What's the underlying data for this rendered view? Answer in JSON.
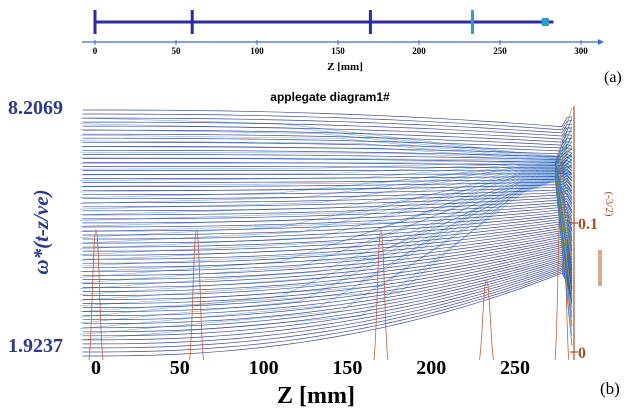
{
  "panel_a": {
    "label": "(a)",
    "xlabel": "Z [mm]",
    "ticks": [
      0,
      50,
      100,
      150,
      200,
      250,
      300
    ],
    "xlim": [
      0,
      310
    ],
    "beam_line": [
      0,
      283
    ],
    "markers": [
      0,
      60,
      170,
      233,
      278
    ],
    "colors": {
      "axis": "#3d6bd4",
      "beam": "#2b2ba8",
      "marker_highlight": "#2aa0c0"
    }
  },
  "panel_b": {
    "label": "(b)",
    "xlabel": "Z [mm]",
    "ylabel": "ω*(t-z/ve)",
    "ylabel_right": "(-3/2)",
    "right_ticks": [
      {
        "value": 0,
        "label": "0"
      },
      {
        "value": 0.1,
        "label": "0.1"
      }
    ],
    "colors": {
      "primary_lines": "#1b2a8a",
      "fan_lines": "#3d8bd4",
      "field_lines": "#c06040",
      "right_axis": "#a0522d",
      "ylabel": "#2b3a8a"
    }
  },
  "chart_data": [
    {
      "type": "line",
      "xlabel": "Z [mm]",
      "xticks": [
        0,
        50,
        100,
        150,
        200,
        250,
        300
      ],
      "xlim": [
        0,
        310
      ],
      "series": []
    },
    {
      "type": "line",
      "title": "applegate diagram1#",
      "xlabel": "Z [mm]",
      "ylabel": "ω*(t-z/ve)",
      "ylabel_right": "(-3/2)",
      "xticks": [
        0,
        50,
        100,
        150,
        200,
        250
      ],
      "xlim": [
        -8,
        292
      ],
      "ylim": [
        1.9237,
        8.2069
      ],
      "ytick_labels": [
        "1.9237",
        "8.2069"
      ],
      "right_ylim": [
        0,
        0.16
      ],
      "right_ticks": [
        0,
        0.1
      ],
      "gap_positions": [
        0,
        60,
        170,
        233,
        278
      ],
      "series": []
    }
  ]
}
